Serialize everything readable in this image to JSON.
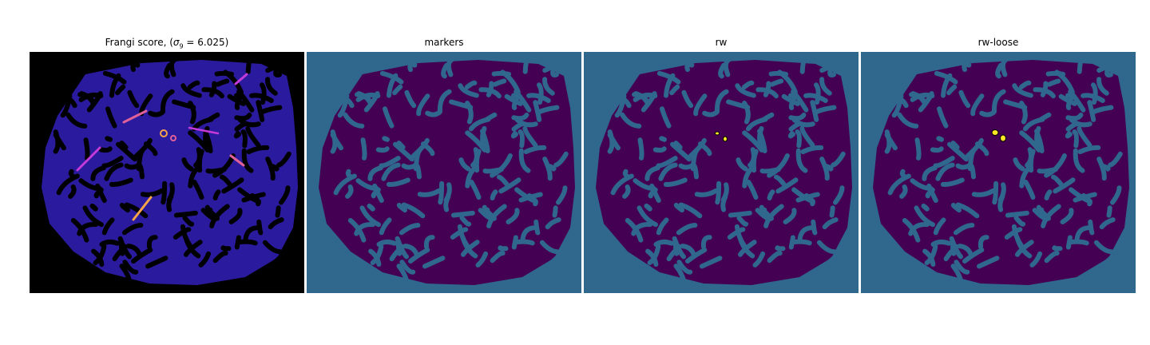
{
  "figure": {
    "panels": [
      {
        "id": "frangi",
        "title_prefix": "Frangi score, (",
        "title_symbol": "σ",
        "title_subscript": "9",
        "title_suffix": " = 6.025)",
        "colormap": "plasma",
        "background": "#000000",
        "region_color": "#2a1a9e",
        "vessel_color": "#000000",
        "highlight_colors": [
          "#c43ad8",
          "#e0609a",
          "#f6a34a"
        ]
      },
      {
        "id": "markers",
        "title": "markers",
        "background": "#30678d",
        "region_color": "#440154",
        "vessel_color": "#30678d"
      },
      {
        "id": "rw",
        "title": "rw",
        "background": "#30678d",
        "region_color": "#440154",
        "vessel_color": "#30678d",
        "spot_color": "#fde725"
      },
      {
        "id": "rw-loose",
        "title": "rw-loose",
        "background": "#30678d",
        "region_color": "#440154",
        "vessel_color": "#30678d",
        "spot_color": "#fde725"
      }
    ]
  }
}
